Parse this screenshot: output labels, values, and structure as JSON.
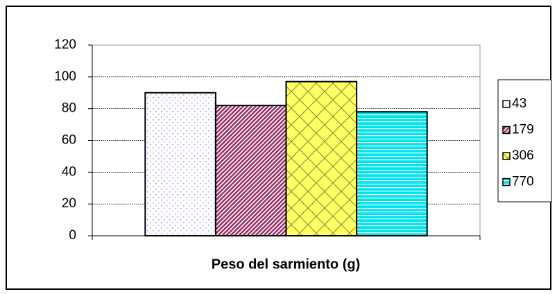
{
  "chart_data": {
    "type": "bar",
    "x_label": "Peso del sarmiento (g)",
    "categories": [
      null
    ],
    "series": [
      {
        "name": "43",
        "color": "#9999ff",
        "pattern": "dots",
        "values": [
          90
        ]
      },
      {
        "name": "179",
        "color": "#993366",
        "pattern": "diagonal",
        "values": [
          82
        ]
      },
      {
        "name": "306",
        "color": "#ffff66",
        "pattern": "lattice",
        "values": [
          97
        ]
      },
      {
        "name": "770",
        "color": "#00e5f0",
        "pattern": "stripes",
        "values": [
          78
        ]
      }
    ],
    "ylim": [
      0,
      120
    ],
    "yticks": [
      0,
      20,
      40,
      60,
      80,
      100,
      120
    ],
    "grid": true,
    "legend": "right"
  }
}
